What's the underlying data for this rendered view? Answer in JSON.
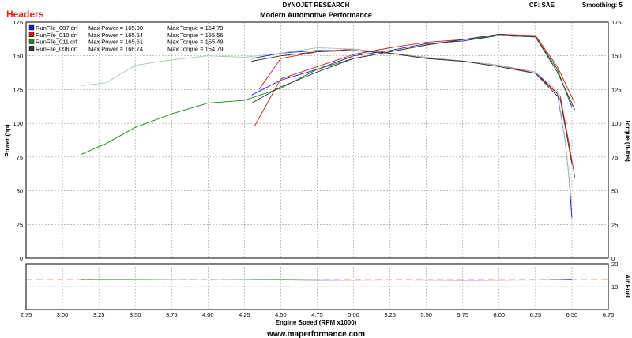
{
  "header": {
    "company": "DYNOJET RESEARCH",
    "title": "Modern Automotive Performance",
    "tag": "Headers",
    "correction": "CF: SAE",
    "smoothing": "Smoothing: 5",
    "footer": "www.maperformance.com"
  },
  "colors": {
    "tag": "#e8261e",
    "grid": "#999999",
    "afr_ref": "#cc2200"
  },
  "chart_data": [
    {
      "type": "line",
      "panel": "main",
      "xlabel": "Engine Speed (RPM x1000)",
      "ylabel": "Power (hp)",
      "y2label": "Torque (ft-lbs)",
      "xlim": [
        2.75,
        6.75
      ],
      "ylim": [
        0,
        175
      ],
      "y2lim": [
        0,
        175
      ],
      "xticks": [
        "2.75",
        "3.00",
        "3.25",
        "3.50",
        "3.75",
        "4.00",
        "4.25",
        "4.50",
        "4.75",
        "5.00",
        "5.25",
        "5.50",
        "5.75",
        "6.00",
        "6.25",
        "6.50",
        "6.75"
      ],
      "yticks": [
        "0",
        "25",
        "50",
        "75",
        "100",
        "125",
        "150",
        "175"
      ],
      "y2ticks": [
        "0",
        "25",
        "50",
        "75",
        "100",
        "125",
        "150",
        "175"
      ],
      "grid": true,
      "legend_position": "top-left",
      "legend": [
        {
          "file": "RunFile_007.drf",
          "power_label": "Max Power = 165.30",
          "torque_label": "Max Torque = 154.79",
          "color": "#1a1acc"
        },
        {
          "file": "RunFile_010.drf",
          "power_label": "Max Power = 165.54",
          "torque_label": "Max Torque = 155.56",
          "color": "#cc1a1a"
        },
        {
          "file": "RunFile_011.drf",
          "power_label": "Max Power = 165.61",
          "torque_label": "Max Torque = 155.49",
          "color": "#1a8a1a"
        },
        {
          "file": "RunFile_006.drf",
          "power_label": "Max Power = 166.74",
          "torque_label": "Max Torque = 154.79",
          "color": "#333333"
        }
      ],
      "series": [
        {
          "name": "RunFile_007.drf",
          "color": "#1a1acc",
          "kind": "power",
          "x": [
            4.3,
            4.5,
            4.75,
            5.0,
            5.25,
            5.5,
            5.75,
            6.0,
            6.25,
            6.4,
            6.5
          ],
          "y": [
            121,
            132,
            140,
            150,
            154,
            159,
            161,
            165,
            164,
            140,
            112
          ]
        },
        {
          "name": "RunFile_007.drf",
          "color": "#1a1acc",
          "kind": "torque",
          "x": [
            4.3,
            4.5,
            4.75,
            5.0,
            5.25,
            5.5,
            5.75,
            6.0,
            6.25,
            6.4,
            6.45,
            6.48,
            6.5
          ],
          "y": [
            148,
            152,
            154,
            154,
            152,
            148,
            146,
            143,
            138,
            122,
            90,
            60,
            30
          ]
        },
        {
          "name": "RunFile_010.drf",
          "color": "#cc1a1a",
          "kind": "power",
          "x": [
            4.32,
            4.5,
            4.75,
            5.0,
            5.25,
            5.5,
            5.75,
            6.0,
            6.25,
            6.4,
            6.52
          ],
          "y": [
            98,
            133,
            142,
            151,
            156,
            160,
            162,
            166,
            165,
            142,
            115
          ]
        },
        {
          "name": "RunFile_010.drf",
          "color": "#cc1a1a",
          "kind": "torque",
          "x": [
            4.35,
            4.5,
            4.75,
            5.0,
            5.25,
            5.5,
            5.75,
            6.0,
            6.25,
            6.42,
            6.48,
            6.52
          ],
          "y": [
            125,
            148,
            153,
            155,
            152,
            149,
            146,
            143,
            137,
            120,
            85,
            60
          ]
        },
        {
          "name": "RunFile_011.drf",
          "color": "#1a8a1a",
          "kind": "power",
          "x": [
            3.13,
            3.3,
            3.5,
            3.75,
            4.0,
            4.25,
            4.5,
            4.75,
            5.0,
            5.25,
            5.5,
            5.75,
            6.0,
            6.25,
            6.4,
            6.5
          ],
          "y": [
            77,
            85,
            97,
            107,
            115,
            117,
            126,
            140,
            148,
            153,
            158,
            162,
            165,
            164,
            140,
            112
          ]
        },
        {
          "name": "RunFile_011.drf",
          "color": "#a8c8a8",
          "kind": "torque",
          "x": [
            3.13,
            3.3,
            3.5,
            3.75,
            4.0,
            4.25,
            4.5,
            4.75,
            5.0,
            5.25,
            5.5,
            5.75,
            6.0,
            6.25,
            6.4,
            6.45,
            6.5
          ],
          "y": [
            128,
            130,
            143,
            147,
            150,
            149,
            152,
            156,
            155,
            152,
            149,
            146,
            143,
            138,
            124,
            90,
            40
          ]
        },
        {
          "name": "RunFile_006.drf",
          "color": "#333333",
          "kind": "power",
          "x": [
            4.3,
            4.5,
            4.75,
            5.0,
            5.25,
            5.5,
            5.75,
            6.0,
            6.25,
            6.4,
            6.52
          ],
          "y": [
            115,
            127,
            138,
            148,
            153,
            158,
            162,
            166,
            164,
            138,
            110
          ]
        },
        {
          "name": "RunFile_006.drf",
          "color": "#333333",
          "kind": "torque",
          "x": [
            4.3,
            4.5,
            4.75,
            5.0,
            5.25,
            5.5,
            5.75,
            6.0,
            6.25,
            6.42,
            6.5
          ],
          "y": [
            146,
            150,
            153,
            154,
            152,
            148,
            146,
            142,
            137,
            118,
            70
          ]
        }
      ]
    },
    {
      "type": "line",
      "panel": "afr",
      "ylabel": "Air/Fuel",
      "xlim": [
        2.75,
        6.75
      ],
      "ylim": [
        0,
        20
      ],
      "yticks": [
        "10",
        "20"
      ],
      "yticks_values": [
        10,
        20
      ],
      "reference_line": 13,
      "series": [
        {
          "name": "RunFile_011.drf",
          "color": "#7aa87a",
          "x": [
            3.13,
            3.5,
            4.0,
            4.5,
            5.0,
            5.5,
            6.0,
            6.5
          ],
          "y": [
            13.3,
            13.2,
            13.0,
            13.3,
            12.9,
            13.0,
            12.9,
            13.1
          ]
        },
        {
          "name": "RunFile_007.drf",
          "color": "#1a1acc",
          "x": [
            4.3,
            4.75,
            5.25,
            5.75,
            6.25,
            6.5
          ],
          "y": [
            13.0,
            12.8,
            12.9,
            12.8,
            12.9,
            13.2
          ]
        }
      ]
    }
  ]
}
